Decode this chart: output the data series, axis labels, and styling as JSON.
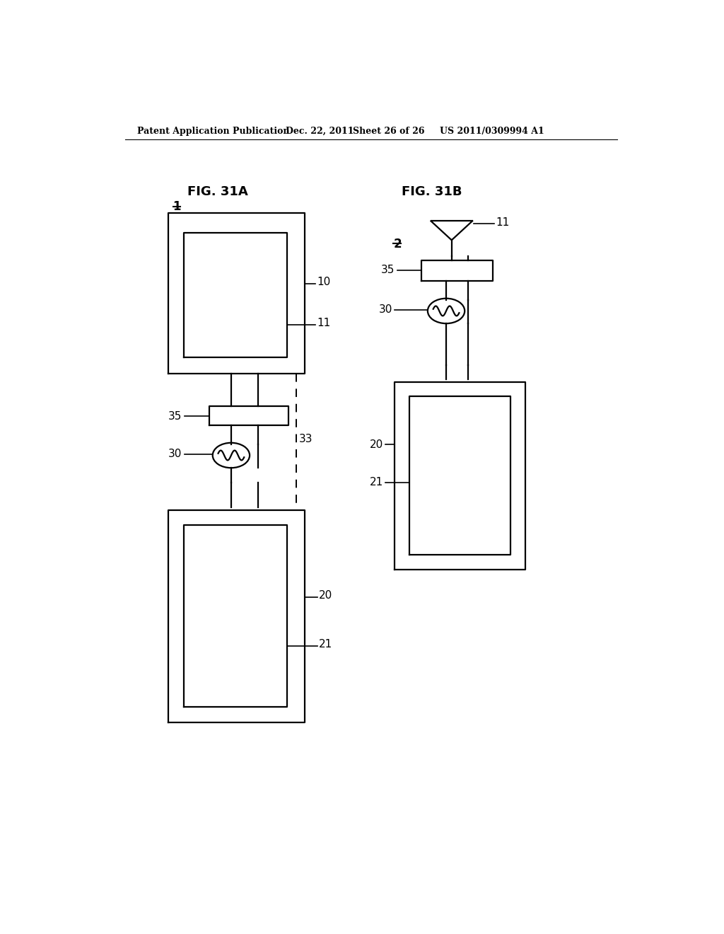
{
  "bg_color": "#ffffff",
  "header_text": "Patent Application Publication",
  "header_date": "Dec. 22, 2011",
  "header_sheet": "Sheet 26 of 26",
  "header_patent": "US 2011/0309994 A1",
  "fig_31a_title": "FIG. 31A",
  "fig_31b_title": "FIG. 31B",
  "line_color": "#000000",
  "lw": 1.6
}
